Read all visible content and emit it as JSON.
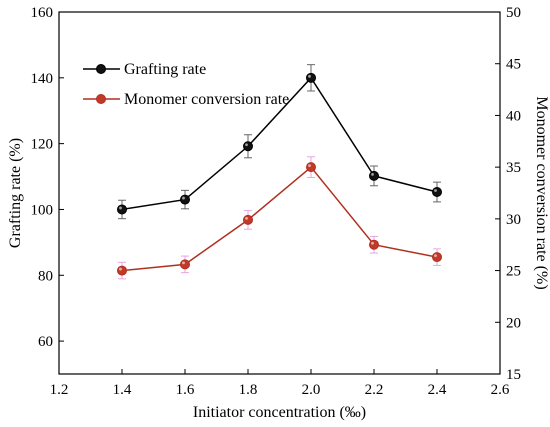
{
  "chart_data": {
    "type": "line",
    "xlabel": "Initiator concentration (‰)",
    "ylabel_left": "Grafting rate (%)",
    "ylabel_right": "Monomer conversion rate (%)",
    "xlim": [
      1.2,
      2.6
    ],
    "x_ticks": [
      "1.2",
      "1.4",
      "1.6",
      "1.8",
      "2.0",
      "2.2",
      "2.4",
      "2.6"
    ],
    "ylim_left": [
      50,
      160
    ],
    "y_ticks_left": [
      "60",
      "80",
      "100",
      "120",
      "140",
      "160"
    ],
    "ylim_right": [
      15,
      50
    ],
    "y_ticks_right": [
      "15",
      "20",
      "25",
      "30",
      "35",
      "40",
      "45",
      "50"
    ],
    "legend_position": "top-left",
    "grid": false,
    "series": [
      {
        "name": "Grafting rate",
        "axis": "left",
        "color": "#000000",
        "marker_color": "#111111",
        "x": [
          1.4,
          1.6,
          1.8,
          2.0,
          2.2,
          2.4
        ],
        "y": [
          100,
          103,
          119.2,
          140,
          110.2,
          105.3
        ],
        "error": [
          2.8,
          2.8,
          3.5,
          4.0,
          3.0,
          3.0
        ]
      },
      {
        "name": "Monomer conversion rate",
        "axis": "right",
        "color": "#b03020",
        "marker_color": "#c0392b",
        "error_color": "#e7a6e0",
        "x": [
          1.4,
          1.6,
          1.8,
          2.0,
          2.2,
          2.4
        ],
        "y": [
          25,
          25.6,
          29.9,
          35,
          27.5,
          26.3
        ],
        "error": [
          0.8,
          0.8,
          0.9,
          1.0,
          0.8,
          0.8
        ]
      }
    ]
  }
}
